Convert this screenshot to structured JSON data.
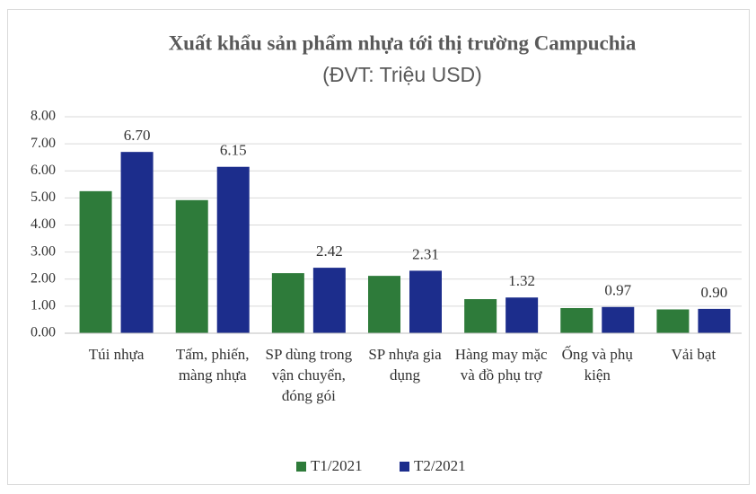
{
  "chart_data": {
    "type": "bar",
    "title": "Xuất khẩu sản phẩm nhựa tới thị trường Campuchia",
    "subtitle": "(ĐVT: Triệu USD)",
    "categories": [
      "Túi nhựa",
      "Tấm, phiến, màng nhựa",
      "SP dùng trong vận chuyển, đóng gói",
      "SP nhựa gia dụng",
      "Hàng may mặc và đồ phụ trợ",
      "Ống và phụ kiện",
      "Vải bạt"
    ],
    "series": [
      {
        "name": "T1/2021",
        "color": "#2e7b3a",
        "values": [
          5.25,
          4.92,
          2.22,
          2.12,
          1.26,
          0.93,
          0.88
        ]
      },
      {
        "name": "T2/2021",
        "color": "#1c2d8c",
        "values": [
          6.7,
          6.15,
          2.42,
          2.31,
          1.32,
          0.97,
          0.9
        ],
        "value_labels": [
          "6.70",
          "6.15",
          "2.42",
          "2.31",
          "1.32",
          "0.97",
          "0.90"
        ]
      }
    ],
    "ylim": [
      0,
      8
    ],
    "yticks": [
      {
        "value": 0,
        "label": "0.00"
      },
      {
        "value": 1,
        "label": "1.00"
      },
      {
        "value": 2,
        "label": "2.00"
      },
      {
        "value": 3,
        "label": "3.00"
      },
      {
        "value": 4,
        "label": "4.00"
      },
      {
        "value": 5,
        "label": "5.00"
      },
      {
        "value": 6,
        "label": "6.00"
      },
      {
        "value": 7,
        "label": "7.00"
      },
      {
        "value": 8,
        "label": "8.00"
      }
    ],
    "grid": true,
    "legend": "bottom"
  }
}
